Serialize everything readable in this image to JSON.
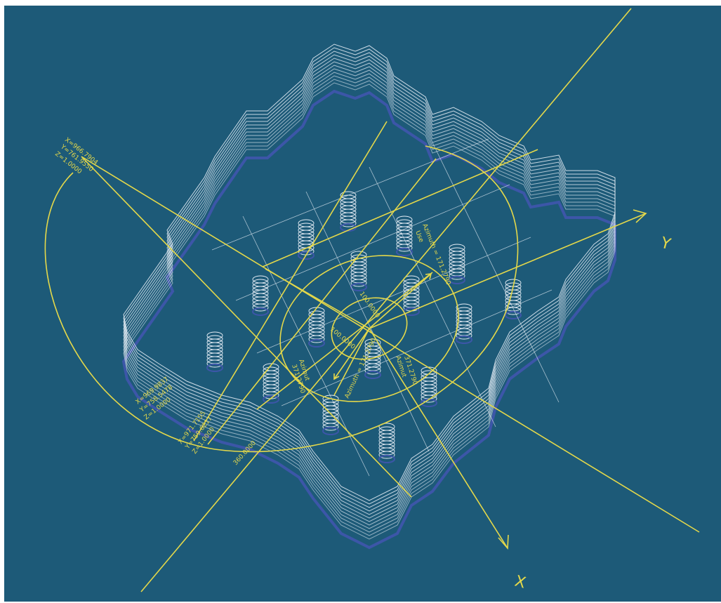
{
  "colors": {
    "background": "#1d5a78",
    "wireframe": "#e6eef6",
    "wireframe_shadow": "#3c56a8",
    "annotation": "#e4d84a"
  },
  "axes": {
    "x_label": "X",
    "y_label": "Y"
  },
  "points": {
    "p1": {
      "x": "X=966.7904",
      "y": "Y=761.9550",
      "z": "Z=1.0000"
    },
    "p2": {
      "x": "X=969.9837",
      "y": "Y=758.5478",
      "z": "Z=1.0000"
    },
    "p3": {
      "x": "X=971.7155",
      "y": "Y=759.6217",
      "z": "Z=1.0000"
    }
  },
  "dimensions": {
    "radius_inner": "100.0000",
    "radius_outer": "100.0000",
    "arc_label": "360.0000"
  },
  "annotations": {
    "use_label": "Use",
    "azimuth_a": "Azimuth = 171.2790",
    "azimuth_b": "Azimuth = 171.2790",
    "azimuth_c": "371.2790",
    "azimuth_d": "371.2790",
    "azimuth_word_1": "Azimut",
    "azimuth_word_2": "Azimut"
  }
}
